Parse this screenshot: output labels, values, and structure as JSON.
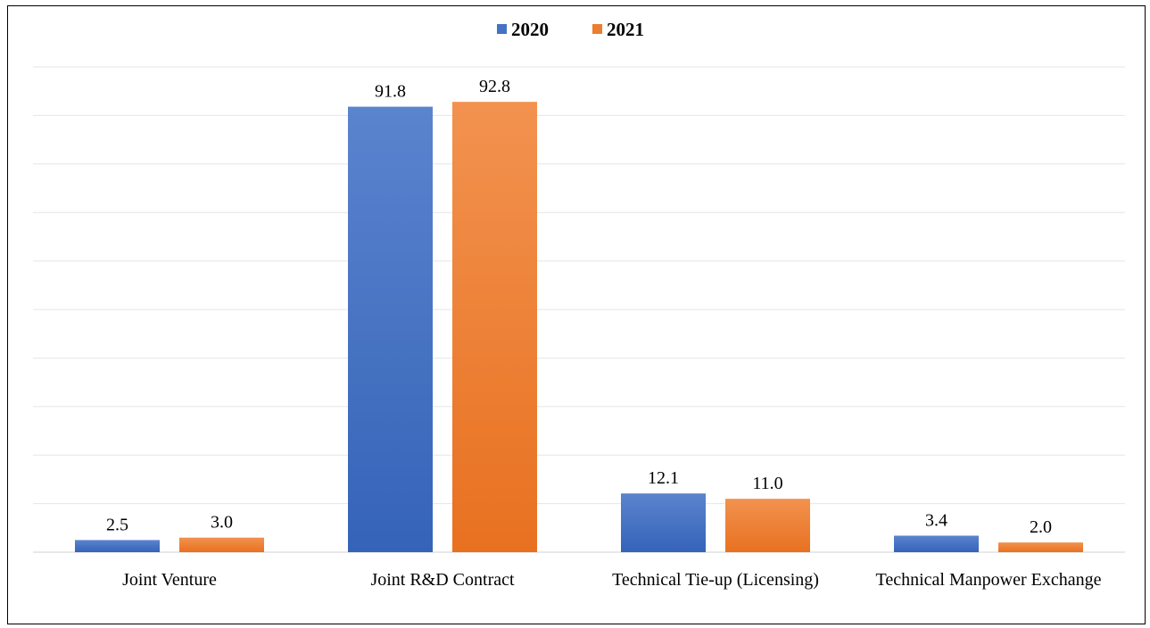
{
  "chart_data": {
    "type": "bar",
    "title": "",
    "xlabel": "",
    "ylabel": "",
    "ylim": [
      0,
      100
    ],
    "grid": true,
    "legend_position": "top-center",
    "categories": [
      "Joint Venture",
      "Joint R&D Contract",
      "Technical Tie-up (Licensing)",
      "Technical Manpower Exchange"
    ],
    "series": [
      {
        "name": "2020",
        "values": [
          2.5,
          91.8,
          12.1,
          3.4
        ],
        "labels": [
          "2.5",
          "91.8",
          "12.1",
          "3.4"
        ],
        "color": "#4472C4"
      },
      {
        "name": "2021",
        "values": [
          3.0,
          92.8,
          11.0,
          2.0
        ],
        "labels": [
          "3.0",
          "92.8",
          "11.0",
          "2.0"
        ],
        "color": "#ED7D31"
      }
    ]
  }
}
